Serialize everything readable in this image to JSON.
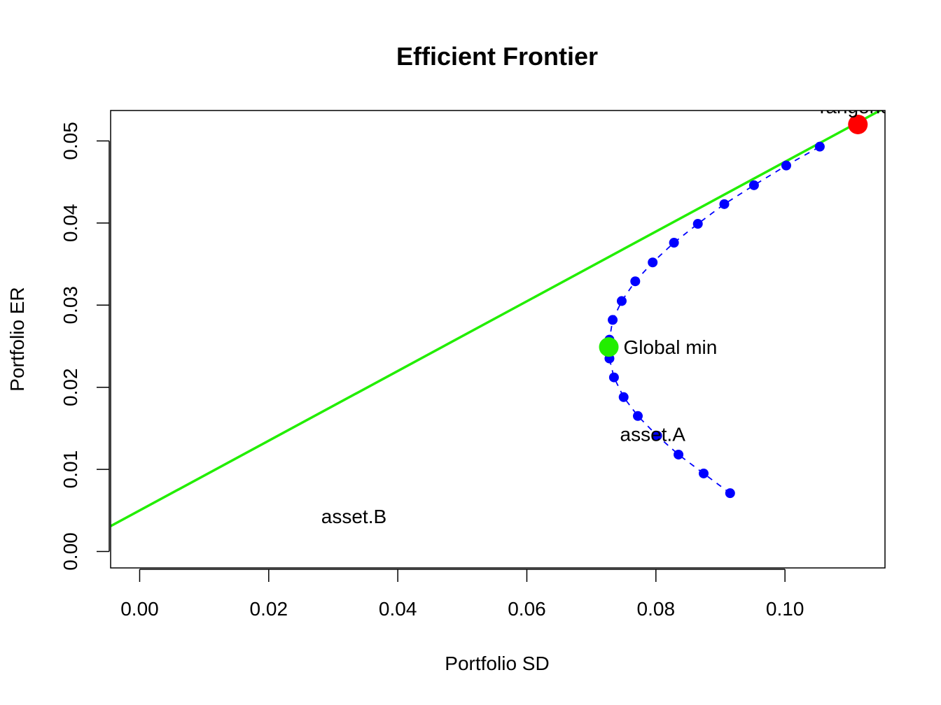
{
  "chart_data": {
    "type": "scatter",
    "title": "Efficient Frontier",
    "xlabel": "Portfolio SD",
    "ylabel": "Portfolio ER",
    "xlim": [
      -0.0045,
      0.1155
    ],
    "ylim": [
      -0.002,
      0.0537
    ],
    "xticks": [
      0.0,
      0.02,
      0.04,
      0.06,
      0.08,
      0.1
    ],
    "xtick_labels": [
      "0.00",
      "0.02",
      "0.04",
      "0.06",
      "0.08",
      "0.10"
    ],
    "yticks": [
      0.0,
      0.01,
      0.02,
      0.03,
      0.04,
      0.05
    ],
    "ytick_labels": [
      "0.00",
      "0.01",
      "0.02",
      "0.03",
      "0.04",
      "0.05"
    ],
    "grid": false,
    "frontier": {
      "color": "#0000ff",
      "line_style": "dashed",
      "points": [
        {
          "x": 0.0915,
          "y": 0.0071
        },
        {
          "x": 0.0874,
          "y": 0.0095
        },
        {
          "x": 0.0835,
          "y": 0.0118
        },
        {
          "x": 0.0802,
          "y": 0.0141
        },
        {
          "x": 0.0772,
          "y": 0.0165
        },
        {
          "x": 0.075,
          "y": 0.0188
        },
        {
          "x": 0.0735,
          "y": 0.0212
        },
        {
          "x": 0.0728,
          "y": 0.0235
        },
        {
          "x": 0.0728,
          "y": 0.0258
        },
        {
          "x": 0.0733,
          "y": 0.0282
        },
        {
          "x": 0.0747,
          "y": 0.0305
        },
        {
          "x": 0.0768,
          "y": 0.0329
        },
        {
          "x": 0.0795,
          "y": 0.0352
        },
        {
          "x": 0.0828,
          "y": 0.0376
        },
        {
          "x": 0.0865,
          "y": 0.0399
        },
        {
          "x": 0.0906,
          "y": 0.0423
        },
        {
          "x": 0.0952,
          "y": 0.0446
        },
        {
          "x": 0.1002,
          "y": 0.047
        },
        {
          "x": 0.1054,
          "y": 0.0493
        }
      ]
    },
    "tangency_line": {
      "color": "#22ee00",
      "intercept": 0.005,
      "slope": 0.4245
    },
    "global_min": {
      "x": 0.0727,
      "y": 0.0249,
      "color": "#22ee00",
      "label": "Global min"
    },
    "tangency": {
      "x": 0.1113,
      "y": 0.052,
      "color": "#ff0000",
      "label": "Tangency"
    },
    "assets": [
      {
        "label": "asset.A",
        "x": 0.0795,
        "y": 0.0143
      },
      {
        "label": "asset.B",
        "x": 0.0332,
        "y": 0.0043
      }
    ]
  }
}
